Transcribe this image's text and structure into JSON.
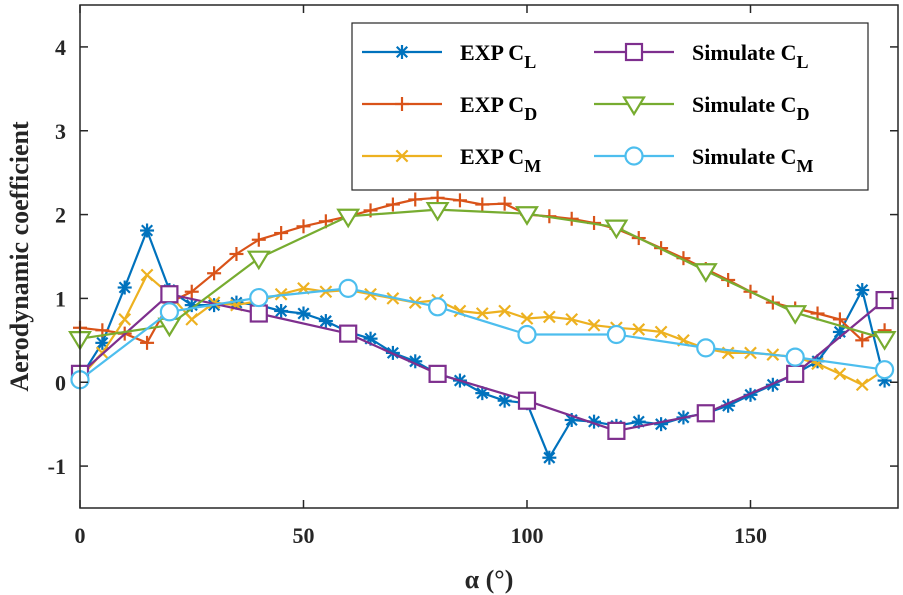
{
  "chart_data": {
    "type": "line",
    "xlabel": "α (°)",
    "ylabel": "Aerodynamic coefficient",
    "xlim": [
      0,
      183
    ],
    "ylim": [
      -1.5,
      4.5
    ],
    "xticks": [
      0,
      50,
      100,
      150
    ],
    "yticks": [
      -1,
      0,
      1,
      2,
      3,
      4
    ],
    "grid": false,
    "legend_position": "top-right",
    "series": [
      {
        "name": "EXP CL",
        "name_base": "EXP C",
        "name_sub": "L",
        "color": "#0072BD",
        "marker": "asterisk",
        "x": [
          0,
          5,
          10,
          15,
          20,
          25,
          30,
          35,
          40,
          45,
          50,
          55,
          60,
          65,
          70,
          75,
          80,
          85,
          90,
          95,
          100,
          105,
          110,
          115,
          120,
          125,
          130,
          135,
          140,
          145,
          150,
          155,
          160,
          165,
          170,
          175,
          180
        ],
        "y": [
          0.05,
          0.47,
          1.13,
          1.81,
          1.1,
          0.92,
          0.92,
          0.95,
          0.92,
          0.85,
          0.82,
          0.73,
          0.6,
          0.52,
          0.35,
          0.25,
          0.1,
          0.02,
          -0.13,
          -0.22,
          -0.25,
          -0.9,
          -0.45,
          -0.47,
          -0.52,
          -0.47,
          -0.5,
          -0.42,
          -0.37,
          -0.28,
          -0.15,
          -0.03,
          0.1,
          0.25,
          0.6,
          1.1,
          0.02
        ]
      },
      {
        "name": "EXP CD",
        "name_base": "EXP C",
        "name_sub": "D",
        "color": "#D95319",
        "marker": "plus",
        "x": [
          0,
          5,
          10,
          15,
          20,
          25,
          30,
          35,
          40,
          45,
          50,
          55,
          60,
          65,
          70,
          75,
          80,
          85,
          90,
          95,
          100,
          105,
          110,
          115,
          120,
          125,
          130,
          135,
          140,
          145,
          150,
          155,
          160,
          165,
          170,
          175,
          180
        ],
        "y": [
          0.65,
          0.62,
          0.58,
          0.47,
          0.95,
          1.08,
          1.3,
          1.53,
          1.7,
          1.78,
          1.86,
          1.92,
          1.98,
          2.05,
          2.12,
          2.18,
          2.2,
          2.17,
          2.12,
          2.13,
          2.0,
          1.98,
          1.95,
          1.9,
          1.83,
          1.72,
          1.6,
          1.48,
          1.35,
          1.22,
          1.08,
          0.95,
          0.88,
          0.82,
          0.75,
          0.5,
          0.62
        ]
      },
      {
        "name": "EXP CM",
        "name_base": "EXP C",
        "name_sub": "M",
        "color": "#EDB120",
        "marker": "x",
        "x": [
          0,
          5,
          10,
          15,
          20,
          25,
          30,
          35,
          40,
          45,
          50,
          55,
          60,
          65,
          70,
          75,
          80,
          85,
          90,
          95,
          100,
          105,
          110,
          115,
          120,
          125,
          130,
          135,
          140,
          145,
          150,
          155,
          160,
          165,
          170,
          175,
          180
        ],
        "y": [
          0.05,
          0.35,
          0.75,
          1.28,
          1.05,
          0.75,
          0.95,
          0.92,
          0.97,
          1.05,
          1.12,
          1.08,
          1.1,
          1.05,
          1.0,
          0.95,
          0.98,
          0.85,
          0.82,
          0.85,
          0.76,
          0.78,
          0.75,
          0.68,
          0.65,
          0.63,
          0.6,
          0.5,
          0.4,
          0.35,
          0.35,
          0.33,
          0.3,
          0.22,
          0.1,
          -0.03,
          0.15
        ]
      },
      {
        "name": "Simulate CL",
        "name_base": "Simulate C",
        "name_sub": "L",
        "color": "#7E2F8E",
        "marker": "square",
        "x": [
          0,
          20,
          40,
          60,
          80,
          100,
          120,
          140,
          160,
          180
        ],
        "y": [
          0.1,
          1.05,
          0.82,
          0.58,
          0.1,
          -0.22,
          -0.58,
          -0.37,
          0.1,
          0.98
        ]
      },
      {
        "name": "Simulate CD",
        "name_base": "Simulate C",
        "name_sub": "D",
        "color": "#77AC30",
        "marker": "triangle-down",
        "x": [
          0,
          20,
          40,
          60,
          80,
          100,
          120,
          140,
          160,
          180
        ],
        "y": [
          0.52,
          0.68,
          1.48,
          1.98,
          2.06,
          2.01,
          1.85,
          1.33,
          0.83,
          0.52
        ]
      },
      {
        "name": "Simulate CM",
        "name_base": "Simulate C",
        "name_sub": "M",
        "color": "#4DBEEE",
        "marker": "circle",
        "x": [
          0,
          20,
          40,
          60,
          80,
          100,
          120,
          140,
          160,
          180
        ],
        "y": [
          0.03,
          0.84,
          1.01,
          1.12,
          0.9,
          0.57,
          0.57,
          0.41,
          0.3,
          0.15
        ]
      }
    ]
  }
}
